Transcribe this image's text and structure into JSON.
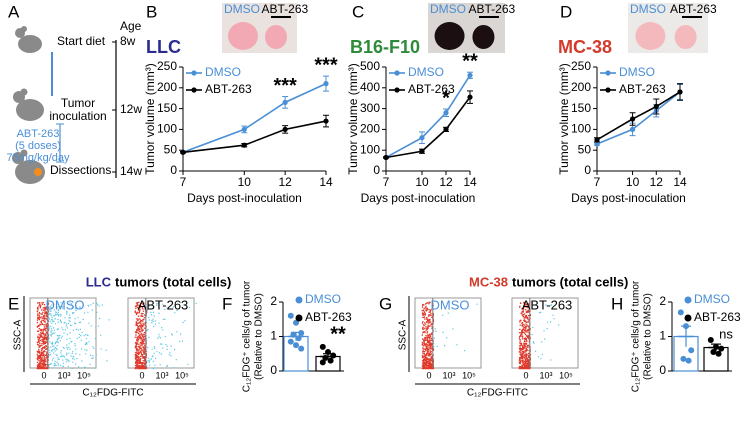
{
  "timeline": {
    "panel": "A",
    "age": "Age",
    "ages": [
      "8w",
      "12w",
      "14w"
    ],
    "start": "Start diet",
    "inoculation": [
      "Tumor",
      "inoculation"
    ],
    "treatment": [
      "ABT-263",
      "(5 doses)",
      "75mg/kg/day"
    ],
    "end": "Dissections"
  },
  "chart_data": [
    {
      "type": "line",
      "panel": "B",
      "title": "LLC",
      "title_color": "#2b2a8f",
      "photo_labels": [
        "DMSO",
        "ABT-263"
      ],
      "xlabel": "Days post-inoculation",
      "ylabel": "Tumor volume (mm³)",
      "x": [
        7,
        10,
        12,
        14
      ],
      "xlim": [
        7,
        14
      ],
      "xticks": [
        7,
        10,
        12,
        14
      ],
      "ylim": [
        0,
        250
      ],
      "yticks": [
        0,
        50,
        100,
        150,
        200,
        250
      ],
      "series": [
        {
          "name": "DMSO",
          "color": "#4a8fd6",
          "values": [
            45,
            100,
            165,
            210
          ],
          "errors": [
            2,
            8,
            14,
            18
          ]
        },
        {
          "name": "ABT-263",
          "color": "#000000",
          "values": [
            45,
            62,
            100,
            120
          ],
          "errors": [
            2,
            4,
            9,
            14
          ]
        }
      ],
      "annotations": [
        {
          "x": 12,
          "text": "***"
        },
        {
          "x": 14,
          "text": "***"
        }
      ]
    },
    {
      "type": "line",
      "panel": "C",
      "title": "B16-F10",
      "title_color": "#2e8b3a",
      "photo_labels": [
        "DMSO",
        "ABT-263"
      ],
      "xlabel": "Days post-inoculation",
      "ylabel": "Tumor volume (mm³)",
      "x": [
        7,
        10,
        12,
        14
      ],
      "xlim": [
        7,
        14
      ],
      "xticks": [
        7,
        10,
        12,
        14
      ],
      "ylim": [
        0,
        500
      ],
      "yticks": [
        0,
        100,
        200,
        300,
        400,
        500
      ],
      "series": [
        {
          "name": "DMSO",
          "color": "#4a8fd6",
          "values": [
            65,
            160,
            280,
            460
          ],
          "errors": [
            3,
            28,
            18,
            15
          ]
        },
        {
          "name": "ABT-263",
          "color": "#000000",
          "values": [
            65,
            95,
            200,
            355
          ],
          "errors": [
            3,
            10,
            10,
            30
          ]
        }
      ],
      "annotations": [
        {
          "x": 12,
          "text": "*"
        },
        {
          "x": 14,
          "text": "**"
        }
      ]
    },
    {
      "type": "line",
      "panel": "D",
      "title": "MC-38",
      "title_color": "#d23a2b",
      "photo_labels": [
        "DMSO",
        "ABT-263"
      ],
      "xlabel": "Days post-inoculation",
      "ylabel": "Tumor volume (mm³)",
      "x": [
        7,
        10,
        12,
        14
      ],
      "xlim": [
        7,
        14
      ],
      "xticks": [
        7,
        10,
        12,
        14
      ],
      "ylim": [
        0,
        250
      ],
      "yticks": [
        0,
        50,
        100,
        150,
        200,
        250
      ],
      "series": [
        {
          "name": "DMSO",
          "color": "#4a8fd6",
          "values": [
            65,
            100,
            145,
            190
          ],
          "errors": [
            3,
            15,
            15,
            18
          ]
        },
        {
          "name": "ABT-263",
          "color": "#000000",
          "values": [
            75,
            125,
            155,
            190
          ],
          "errors": [
            5,
            15,
            18,
            20
          ]
        }
      ]
    },
    {
      "type": "bar",
      "panel": "F",
      "ylabel": [
        "C₁₂FDG⁺ cells/g of tumor",
        "(Relative to DMSO)"
      ],
      "ylim": [
        0,
        2
      ],
      "yticks": [
        0,
        1,
        2
      ],
      "series": [
        {
          "name": "DMSO",
          "color": "#4a8fd6",
          "value": 1.0,
          "error": 0.12,
          "points": [
            1.6,
            1.4,
            1.1,
            1.05,
            0.95,
            0.85,
            0.75,
            0.65
          ]
        },
        {
          "name": "ABT-263",
          "color": "#000000",
          "value": 0.42,
          "error": 0.08,
          "points": [
            0.7,
            0.55,
            0.45,
            0.38,
            0.3,
            0.25
          ]
        }
      ],
      "annotation": "**"
    },
    {
      "type": "bar",
      "panel": "H",
      "ylabel": [
        "C₁₂FDG⁺ cells/g of tumor",
        "(Relative to DMSO)"
      ],
      "ylim": [
        0,
        2
      ],
      "yticks": [
        0,
        1,
        2
      ],
      "series": [
        {
          "name": "DMSO",
          "color": "#4a8fd6",
          "value": 1.0,
          "error": 0.3,
          "points": [
            1.7,
            1.3,
            0.6,
            0.35,
            0.3
          ]
        },
        {
          "name": "ABT-263",
          "color": "#000000",
          "value": 0.68,
          "error": 0.1,
          "points": [
            0.9,
            0.7,
            0.65,
            0.55,
            0.5
          ]
        }
      ],
      "annotation": "ns"
    }
  ],
  "cytometry": [
    {
      "panel": "E",
      "strain": "LLC",
      "strain_color": "#2b2a8f",
      "heading": "tumors (total cells)",
      "plots": [
        "DMSO",
        "ABT-263"
      ],
      "ylabel": "SSC-A",
      "xlabel": "C₁₂FDG-FITC",
      "ticks": [
        "0",
        "10³",
        "10⁵"
      ]
    },
    {
      "panel": "G",
      "strain": "MC-38",
      "strain_color": "#d23a2b",
      "heading": "tumors (total cells)",
      "plots": [
        "DMSO",
        "ABT-263"
      ],
      "ylabel": "SSC-A",
      "xlabel": "C₁₂FDG-FITC",
      "ticks": [
        "0",
        "10³",
        "10⁵"
      ]
    }
  ]
}
